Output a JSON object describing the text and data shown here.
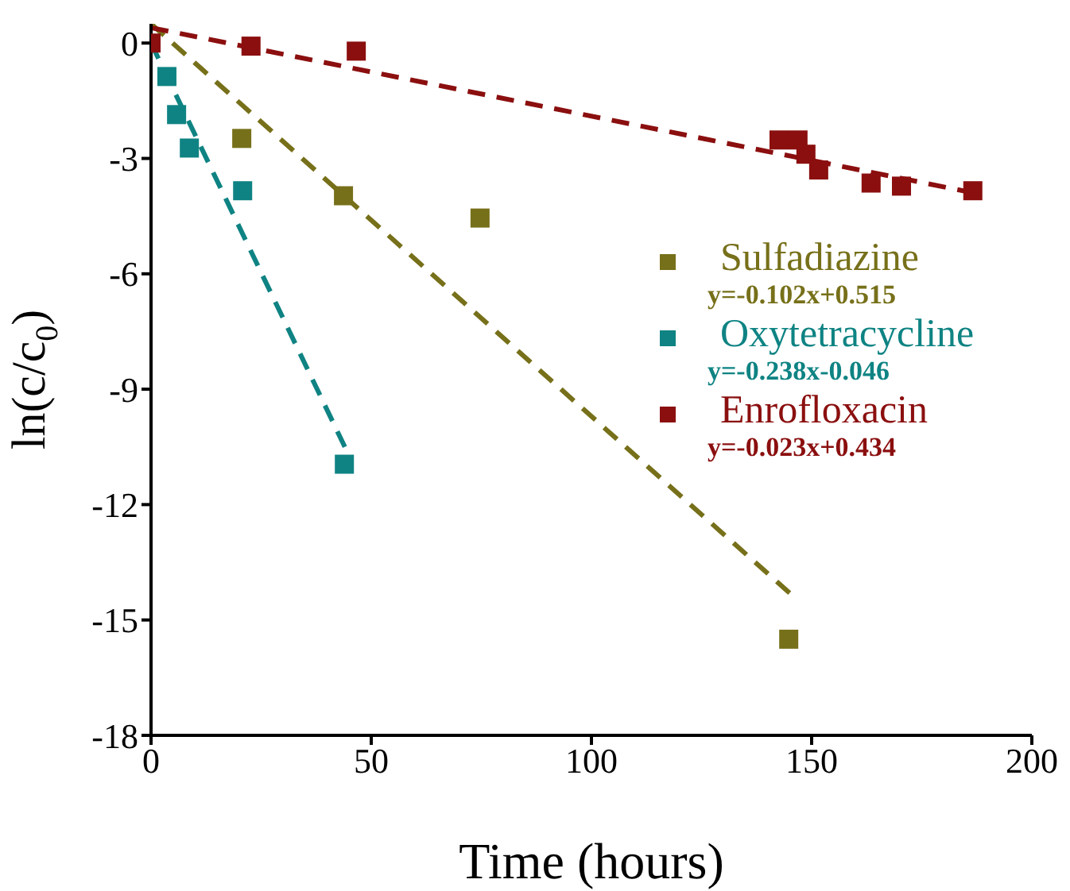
{
  "chart_data": {
    "type": "scatter",
    "xlabel": "Time (hours)",
    "ylabel": "ln(c/c$_{0}$)",
    "xlim": [
      0,
      200
    ],
    "xticks": [
      0,
      50,
      100,
      150,
      200
    ],
    "ylim": [
      -18,
      0.5
    ],
    "yticks": [
      0,
      -3,
      -6,
      -9,
      -12,
      -15,
      -18
    ],
    "grid": false,
    "legend": "right",
    "annotations": [
      "y=-0.102x+0.515",
      "y=-0.238x-0.046",
      "y=-0.023x+0.434"
    ],
    "series": [
      {
        "name": "Sulfadiazine",
        "type": "scatter",
        "marker": "square",
        "color": "#77701a",
        "x": [
          20.6,
          43.7,
          74.7,
          144.8
        ],
        "values": [
          -2.48,
          -3.97,
          -4.55,
          -15.5
        ]
      },
      {
        "name": "Oxytetracycline",
        "type": "scatter",
        "marker": "square",
        "color": "#0f8383",
        "x": [
          3.6,
          5.8,
          8.7,
          20.8,
          43.9
        ],
        "values": [
          -0.87,
          -1.86,
          -2.73,
          -3.84,
          -10.95
        ]
      },
      {
        "name": "Enrofloxacin",
        "type": "scatter",
        "marker": "square",
        "color": "#8b0f0f",
        "x": [
          0,
          22.7,
          46.6,
          142.6,
          146.9,
          148.7,
          151.6,
          163.5,
          170.4,
          186.6
        ],
        "values": [
          0,
          -0.08,
          -0.21,
          -2.52,
          -2.52,
          -2.89,
          -3.3,
          -3.64,
          -3.72,
          -3.84
        ]
      },
      {
        "type": "line",
        "marker": "none",
        "color": "#77701a",
        "line_style": "dashed",
        "x": [
          0,
          145
        ],
        "values": [
          0.5,
          -14.3
        ]
      },
      {
        "type": "line",
        "marker": "none",
        "color": "#0f8383",
        "line_style": "dashed",
        "x": [
          0,
          44
        ],
        "values": [
          0,
          -10.5
        ]
      },
      {
        "type": "line",
        "marker": "none",
        "color": "#8b0f0f",
        "line_style": "dashed",
        "x": [
          0,
          187
        ],
        "values": [
          0.4,
          -3.9
        ]
      }
    ]
  }
}
